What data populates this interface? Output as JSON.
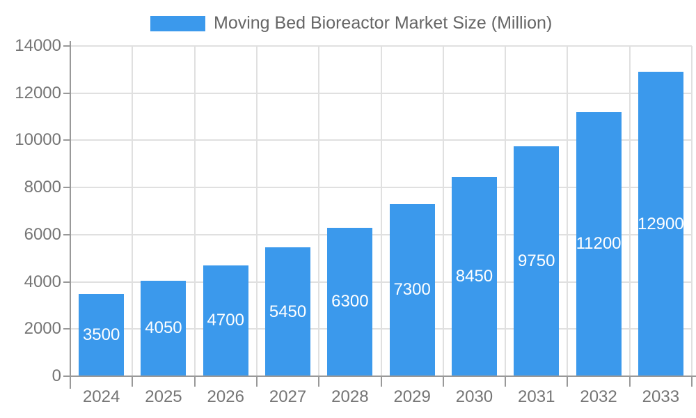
{
  "chart_data": {
    "type": "bar",
    "title": "Moving Bed Bioreactor Market Size (Million)",
    "legend_entries": [
      "Moving Bed Bioreactor Market Size (Million)"
    ],
    "legend_position": "top-center",
    "categories": [
      "2024",
      "2025",
      "2026",
      "2027",
      "2028",
      "2029",
      "2030",
      "2031",
      "2032",
      "2033"
    ],
    "values": [
      3500,
      4050,
      4700,
      5450,
      6300,
      7300,
      8450,
      9750,
      11200,
      12900
    ],
    "value_labels": [
      "3500",
      "4050",
      "4700",
      "5450",
      "6300",
      "7300",
      "8450",
      "9750",
      "11200",
      "12900"
    ],
    "xlabel": "",
    "ylabel": "",
    "ylim": [
      0,
      14000
    ],
    "ytick_step": 2000,
    "ytick_labels": [
      "0",
      "2000",
      "4000",
      "6000",
      "8000",
      "10000",
      "12000",
      "14000"
    ],
    "grid": "horizontal and vertical gridlines on",
    "value_label_position": "inside-center"
  },
  "colors": {
    "bar": "#3B99EC",
    "grid": "#E0E0E0",
    "axis": "#999999",
    "tick_label": "#757575",
    "legend_text": "#666666",
    "value_label": "#FFFFFF",
    "background": "#FFFFFF"
  }
}
